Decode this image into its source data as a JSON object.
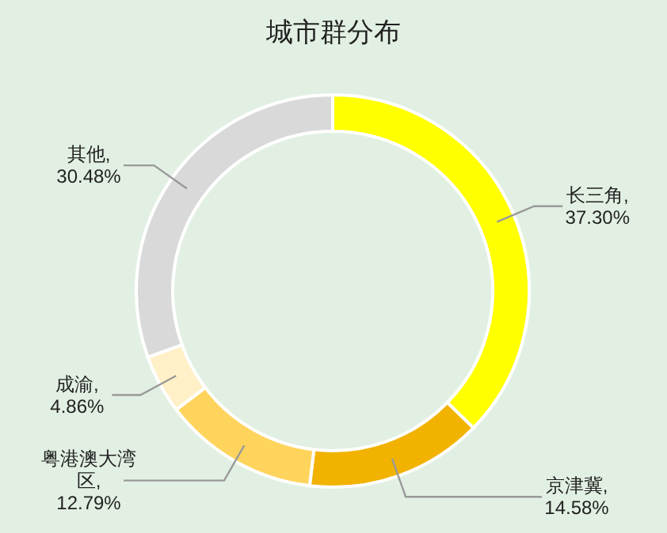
{
  "chart_data": {
    "type": "donut",
    "title": "城市群分布",
    "categories": [
      "长三角",
      "京津冀",
      "粤港澳大湾区",
      "成渝",
      "其他"
    ],
    "values": [
      37.3,
      14.58,
      12.79,
      4.86,
      30.48
    ],
    "value_labels": [
      ",\n37.30%",
      ",\n14.58%",
      ",\n12.79%",
      ",\n4.86%",
      ",\n30.48%"
    ],
    "colors": [
      "#ffff00",
      "#f2b200",
      "#ffd45c",
      "#fff0c8",
      "#d9d9d9"
    ]
  }
}
